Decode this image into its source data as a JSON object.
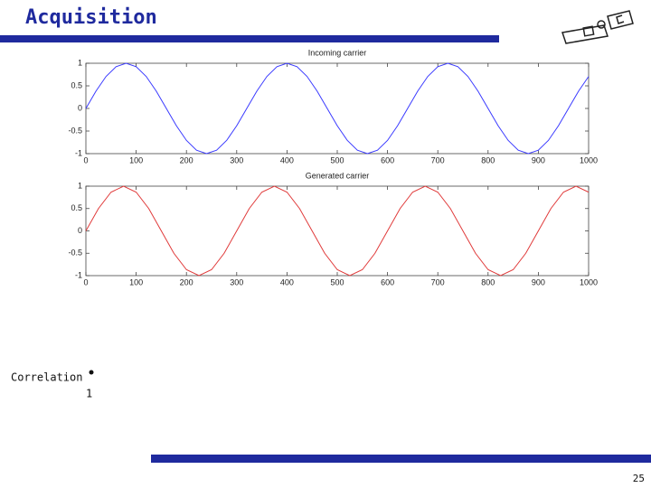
{
  "header": {
    "title": "Acquisition"
  },
  "chart_data": [
    {
      "type": "line",
      "title": "Incoming carrier",
      "x": [
        0,
        20,
        40,
        60,
        80,
        100,
        120,
        140,
        160,
        180,
        200,
        220,
        240,
        260,
        280,
        300,
        320,
        340,
        360,
        380,
        400,
        420,
        440,
        460,
        480,
        500,
        520,
        540,
        560,
        580,
        600,
        620,
        640,
        660,
        680,
        700,
        720,
        740,
        760,
        780,
        800,
        820,
        840,
        860,
        880,
        900,
        920,
        940,
        960,
        980,
        1000
      ],
      "series": [
        {
          "name": "Incoming carrier",
          "color": "#3a3aff",
          "values": [
            0,
            0.383,
            0.707,
            0.924,
            1,
            0.924,
            0.707,
            0.383,
            0,
            -0.383,
            -0.707,
            -0.924,
            -1,
            -0.924,
            -0.707,
            -0.383,
            0,
            0.383,
            0.707,
            0.924,
            1,
            0.924,
            0.707,
            0.383,
            0,
            -0.383,
            -0.707,
            -0.924,
            -1,
            -0.924,
            -0.707,
            -0.383,
            0,
            0.383,
            0.707,
            0.924,
            1,
            0.924,
            0.707,
            0.383,
            0,
            -0.383,
            -0.707,
            -0.924,
            -1,
            -0.924,
            -0.707,
            -0.383,
            0,
            0.383,
            0.707
          ]
        }
      ],
      "xlim": [
        0,
        1000
      ],
      "xticks": [
        0,
        100,
        200,
        300,
        400,
        500,
        600,
        700,
        800,
        900,
        1000
      ],
      "ylim": [
        -1,
        1
      ],
      "yticks": [
        -1,
        -0.5,
        0,
        0.5,
        1
      ]
    },
    {
      "type": "line",
      "title": "Generated carrier",
      "x": [
        0,
        25,
        50,
        75,
        100,
        125,
        150,
        175,
        200,
        225,
        250,
        275,
        300,
        325,
        350,
        375,
        400,
        425,
        450,
        475,
        500,
        525,
        550,
        575,
        600,
        625,
        650,
        675,
        700,
        725,
        750,
        775,
        800,
        825,
        850,
        875,
        900,
        925,
        950,
        975,
        1000
      ],
      "series": [
        {
          "name": "Generated carrier",
          "color": "#e03a3a",
          "values": [
            0,
            0.5,
            0.866,
            1,
            0.866,
            0.5,
            0,
            -0.5,
            -0.866,
            -1,
            -0.866,
            -0.5,
            0,
            0.5,
            0.866,
            1,
            0.866,
            0.5,
            0,
            -0.5,
            -0.866,
            -1,
            -0.866,
            -0.5,
            0,
            0.5,
            0.866,
            1,
            0.866,
            0.5,
            0,
            -0.5,
            -0.866,
            -1,
            -0.866,
            -0.5,
            0,
            0.5,
            0.866,
            1,
            0.866
          ]
        }
      ],
      "xlim": [
        0,
        1000
      ],
      "xticks": [
        0,
        100,
        200,
        300,
        400,
        500,
        600,
        700,
        800,
        900,
        1000
      ],
      "ylim": [
        -1,
        1
      ],
      "yticks": [
        -1,
        -0.5,
        0,
        0.5,
        1
      ]
    }
  ],
  "body": {
    "label": "Correlation",
    "value": 1
  },
  "footer": {
    "page": 25
  }
}
